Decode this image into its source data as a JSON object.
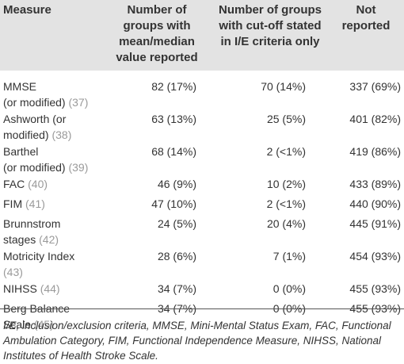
{
  "table": {
    "headers": [
      "Measure",
      "Number of groups with mean/median value reported",
      "Number of groups with cut-off stated in I/E criteria only",
      "Not reported"
    ],
    "rows": [
      {
        "measure_line1": "MMSE",
        "measure_line2": "(or modified)",
        "ref": "(37)",
        "mean_median": "82 (17%)",
        "cutoff_only": "70 (14%)",
        "not_reported": "337 (69%)"
      },
      {
        "measure_line1": "Ashworth (or",
        "measure_line2": "modified)",
        "ref": "(38)",
        "mean_median": "63 (13%)",
        "cutoff_only": "25 (5%)",
        "not_reported": "401 (82%)"
      },
      {
        "measure_line1": "Barthel",
        "measure_line2": "(or modified)",
        "ref": "(39)",
        "mean_median": "68 (14%)",
        "cutoff_only": "2 (<1%)",
        "not_reported": "419 (86%)"
      },
      {
        "measure_line1": "FAC",
        "measure_line2": "",
        "ref": "(40)",
        "mean_median": "46 (9%)",
        "cutoff_only": "10 (2%)",
        "not_reported": "433 (89%)"
      },
      {
        "measure_line1": "FIM",
        "measure_line2": "",
        "ref": "(41)",
        "mean_median": "47 (10%)",
        "cutoff_only": "2 (<1%)",
        "not_reported": "440 (90%)"
      },
      {
        "measure_line1": "Brunnstrom",
        "measure_line2": "stages",
        "ref": "(42)",
        "mean_median": "24 (5%)",
        "cutoff_only": "20 (4%)",
        "not_reported": "445 (91%)"
      },
      {
        "measure_line1": "Motricity Index",
        "measure_line2": "",
        "ref": "(43)",
        "mean_median": "28 (6%)",
        "cutoff_only": "7 (1%)",
        "not_reported": "454 (93%)"
      },
      {
        "measure_line1": "NIHSS",
        "measure_line2": "",
        "ref": "(44)",
        "mean_median": "34 (7%)",
        "cutoff_only": "0 (0%)",
        "not_reported": "455 (93%)"
      },
      {
        "measure_line1": "Berg Balance",
        "measure_line2": "Scale",
        "ref": "(45)",
        "mean_median": "34 (7%)",
        "cutoff_only": "0 (0%)",
        "not_reported": "455 (93%)"
      }
    ]
  },
  "footnote": "I/E, inclusion/exclusion criteria, MMSE, Mini-Mental Status Exam, FAC, Functional Ambulation Category, FIM, Functional Independence Measure, NIHSS, National Institutes of Health Stroke Scale.",
  "colors": {
    "header_bg": "#e3e3e3",
    "text": "#333333",
    "reference": "#9a9a9a",
    "rule": "#555555"
  }
}
